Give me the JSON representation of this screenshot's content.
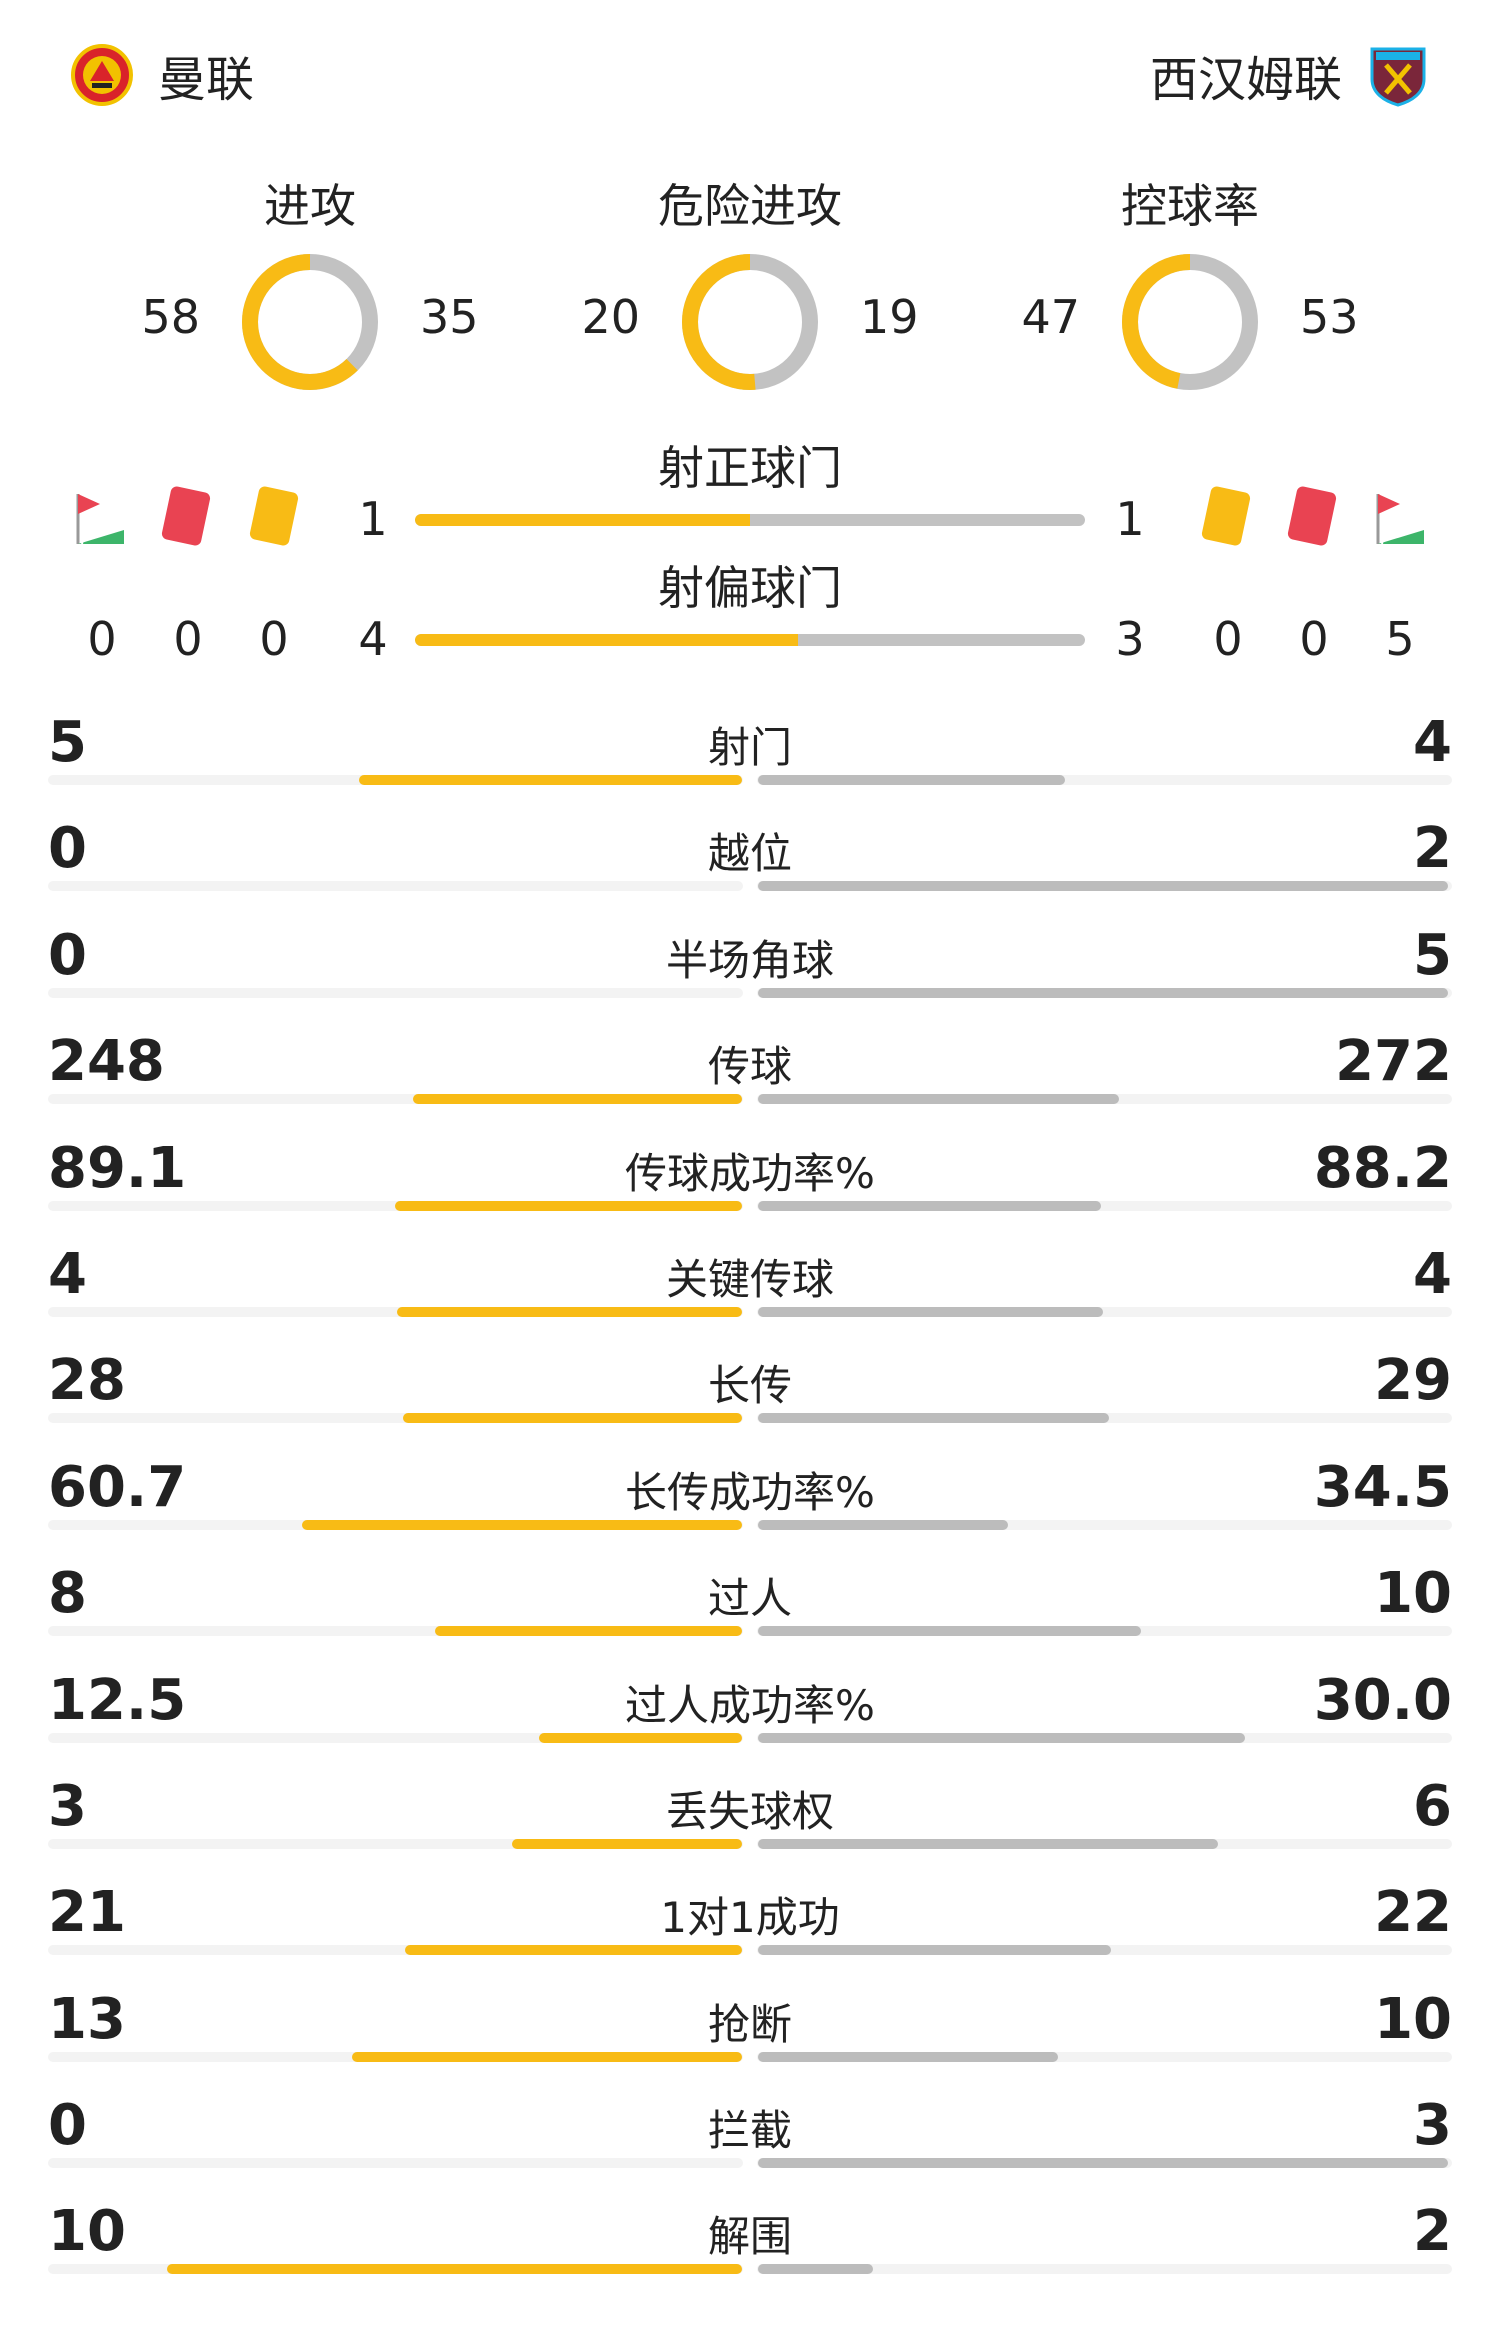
{
  "home_team": {
    "name": "曼联",
    "logo": "man-utd-crest"
  },
  "away_team": {
    "name": "西汉姆联",
    "logo": "west-ham-crest"
  },
  "colors": {
    "home": "#f8bb15",
    "away": "#c2c2c2"
  },
  "rings": [
    {
      "label": "进攻",
      "home": "58",
      "away": "35"
    },
    {
      "label": "危险进攻",
      "home": "20",
      "away": "19"
    },
    {
      "label": "控球率",
      "home": "47",
      "away": "53"
    }
  ],
  "shots_on_target": {
    "label": "射正球门",
    "home": "1",
    "away": "1"
  },
  "shots_off_target": {
    "label": "射偏球门",
    "home": "4",
    "away": "3"
  },
  "home_cards": {
    "corners": "0",
    "red": "0",
    "yellow": "0"
  },
  "away_cards": {
    "yellow": "0",
    "red": "0",
    "corners": "5"
  },
  "stats": [
    {
      "label": "射门",
      "home": "5",
      "away": "4"
    },
    {
      "label": "越位",
      "home": "0",
      "away": "2"
    },
    {
      "label": "半场角球",
      "home": "0",
      "away": "5"
    },
    {
      "label": "传球",
      "home": "248",
      "away": "272"
    },
    {
      "label": "传球成功率%",
      "home": "89.1",
      "away": "88.2"
    },
    {
      "label": "关键传球",
      "home": "4",
      "away": "4"
    },
    {
      "label": "长传",
      "home": "28",
      "away": "29"
    },
    {
      "label": "长传成功率%",
      "home": "60.7",
      "away": "34.5"
    },
    {
      "label": "过人",
      "home": "8",
      "away": "10"
    },
    {
      "label": "过人成功率%",
      "home": "12.5",
      "away": "30.0"
    },
    {
      "label": "丢失球权",
      "home": "3",
      "away": "6"
    },
    {
      "label": "1对1成功",
      "home": "21",
      "away": "22"
    },
    {
      "label": "抢断",
      "home": "13",
      "away": "10"
    },
    {
      "label": "拦截",
      "home": "0",
      "away": "3"
    },
    {
      "label": "解围",
      "home": "10",
      "away": "2"
    }
  ]
}
